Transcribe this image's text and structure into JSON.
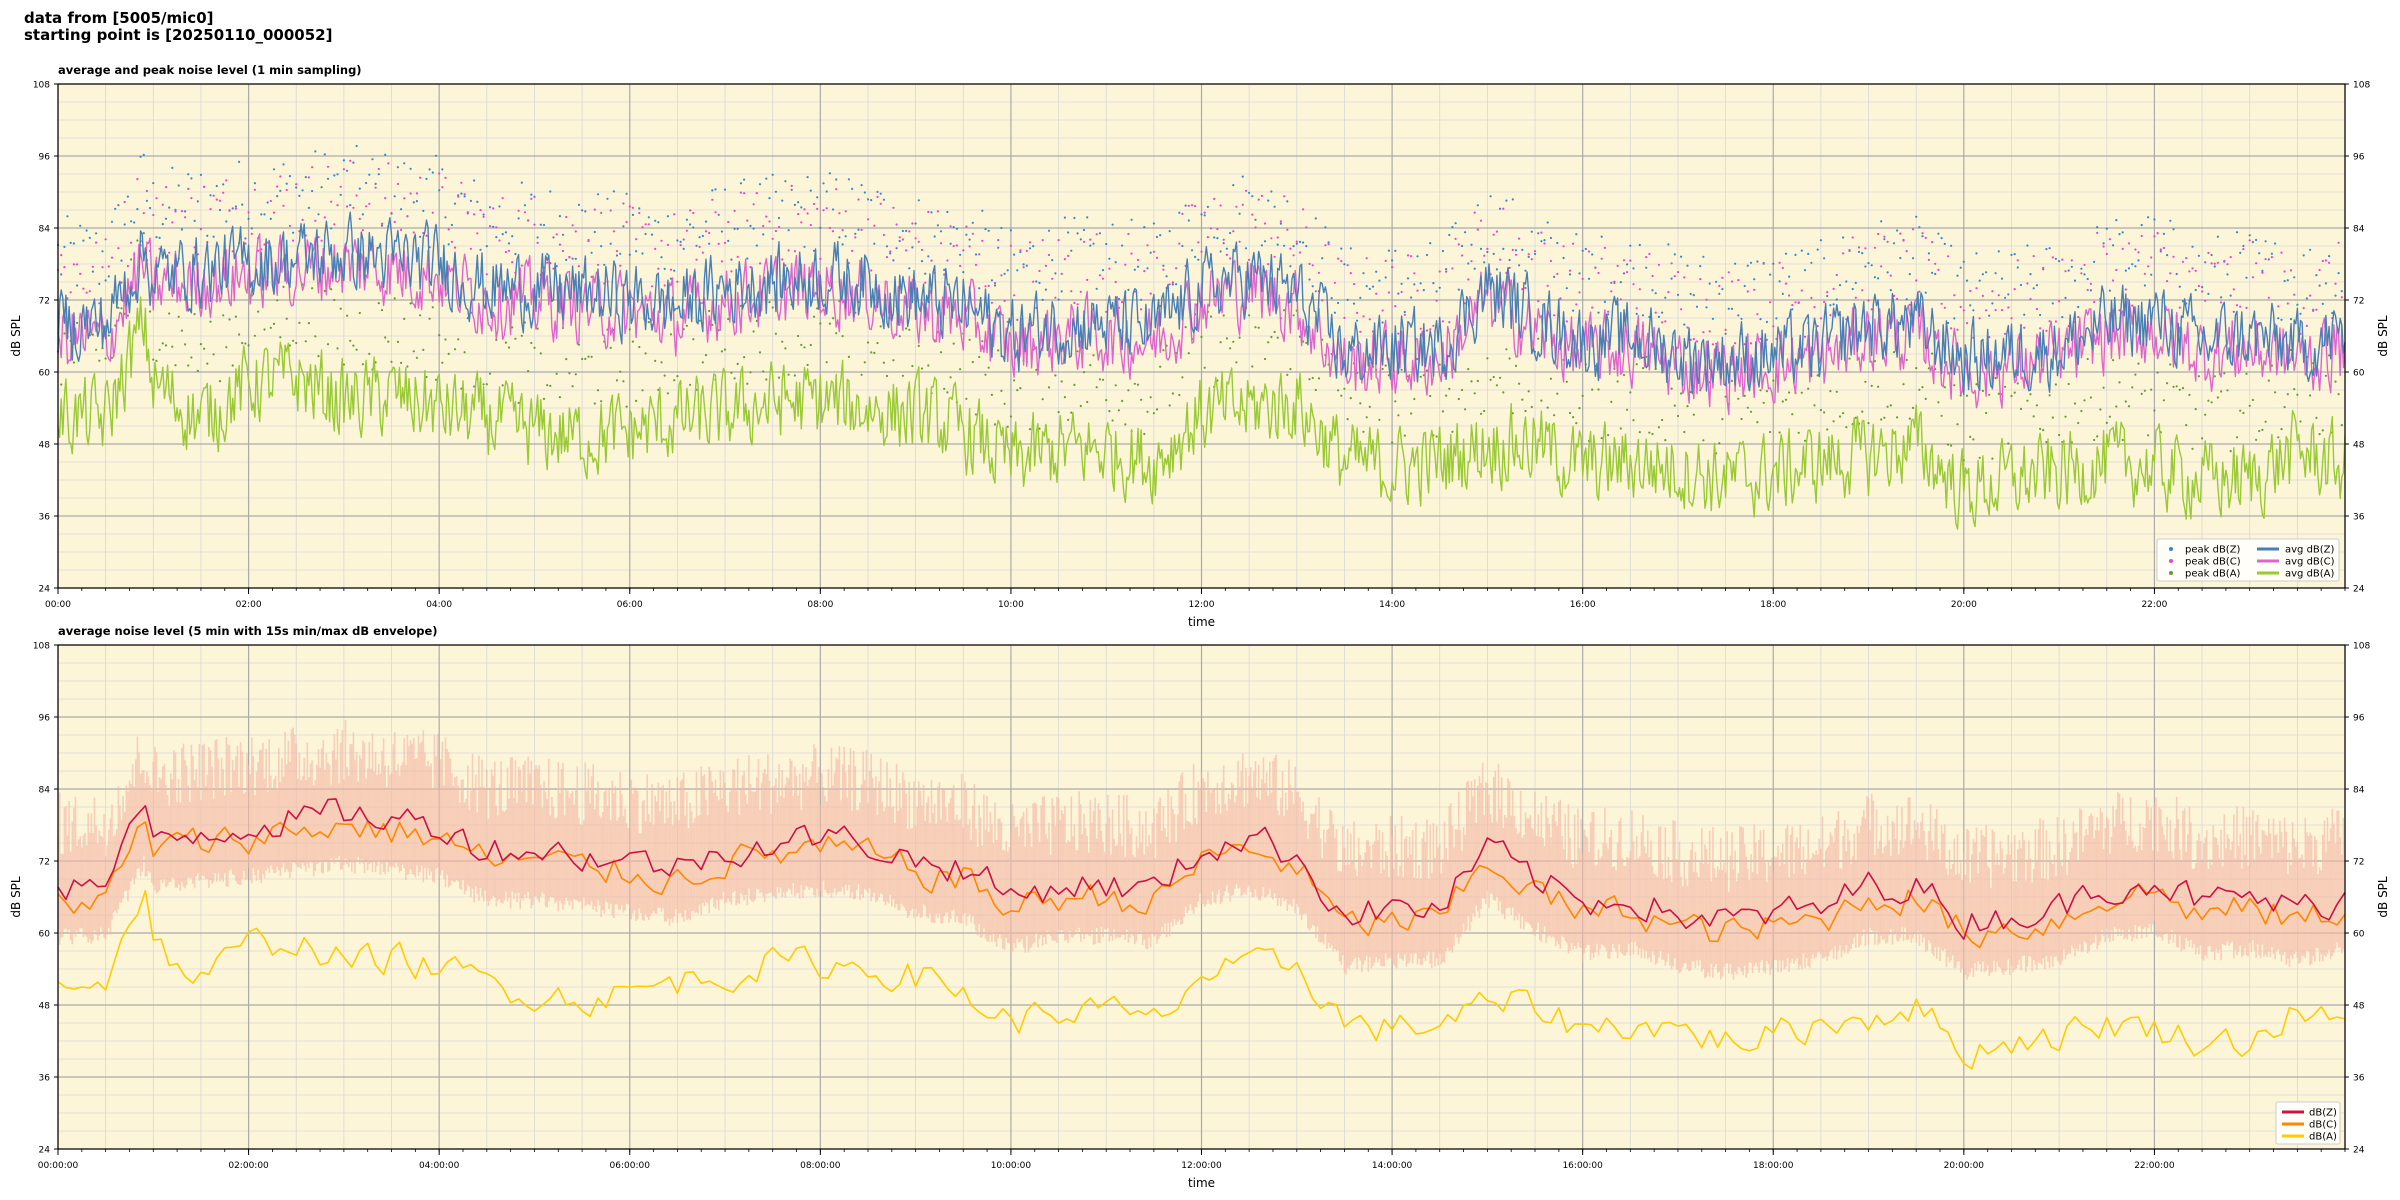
{
  "header": {
    "line1": "data from [5005/mic0]",
    "line2": "starting point is [20250110_000052]"
  },
  "colors": {
    "plot_bg": "#fdf5d8",
    "grid_major": "#aaaaaa",
    "grid_minor": "#d8d8d8",
    "dbz_blue": "#4a7fb5",
    "dbc_magenta": "#dd66cc",
    "dba_green": "#99c933",
    "z_crimson": "#cc1144",
    "c_orange": "#ff8800",
    "a_yellow": "#ffcc00",
    "envelope": "#f5b8a8"
  },
  "chart_data": [
    {
      "type": "line",
      "title": "average and peak noise level (1 min sampling)",
      "xlabel": "time",
      "ylabel": "dB SPL",
      "ylim": [
        24,
        108
      ],
      "yticks": [
        24,
        36,
        48,
        60,
        72,
        84,
        96,
        108
      ],
      "xlim_hours": [
        0,
        24
      ],
      "xtick_labels": [
        "00:00",
        "02:00",
        "04:00",
        "06:00",
        "08:00",
        "10:00",
        "12:00",
        "14:00",
        "16:00",
        "18:00",
        "20:00",
        "22:00"
      ],
      "grid": true,
      "legend_position": "bottom-right",
      "legend": [
        "peak dB(Z)",
        "peak dB(C)",
        "peak dB(A)",
        "avg dB(Z)",
        "avg dB(C)",
        "avg dB(A)"
      ],
      "series": [
        {
          "name": "avg dB(Z)",
          "color": "#4a7fb5",
          "x_hours": [
            0,
            0.5,
            0.9,
            1.0,
            1.5,
            2.0,
            2.5,
            3.0,
            3.5,
            4.0,
            4.5,
            5.0,
            5.5,
            6.0,
            6.5,
            7.0,
            7.5,
            8.0,
            8.5,
            9.0,
            9.5,
            10.0,
            10.5,
            11.0,
            11.5,
            12.0,
            12.5,
            13.0,
            13.5,
            14.0,
            14.5,
            15.0,
            15.5,
            16.0,
            16.5,
            17.0,
            17.5,
            18.0,
            18.5,
            19.0,
            19.5,
            20.0,
            20.5,
            21.0,
            21.5,
            22.0,
            22.5,
            23.0,
            23.5,
            24.0
          ],
          "values": [
            68,
            68,
            80,
            76,
            77,
            78,
            79,
            80,
            79,
            78,
            74,
            74,
            73,
            72,
            71,
            74,
            75,
            76,
            75,
            72,
            71,
            66,
            68,
            68,
            67,
            74,
            76,
            73,
            63,
            64,
            64,
            74,
            69,
            65,
            66,
            63,
            62,
            63,
            64,
            68,
            68,
            62,
            63,
            64,
            68,
            69,
            65,
            66,
            64,
            66
          ]
        },
        {
          "name": "avg dB(C)",
          "color": "#dd66cc",
          "x_hours": [
            0,
            0.5,
            0.9,
            1.0,
            1.5,
            2.0,
            2.5,
            3.0,
            3.5,
            4.0,
            4.5,
            5.0,
            5.5,
            6.0,
            6.5,
            7.0,
            7.5,
            8.0,
            8.5,
            9.0,
            9.5,
            10.0,
            10.5,
            11.0,
            11.5,
            12.0,
            12.5,
            13.0,
            13.5,
            14.0,
            14.5,
            15.0,
            15.5,
            16.0,
            16.5,
            17.0,
            17.5,
            18.0,
            18.5,
            19.0,
            19.5,
            20.0,
            20.5,
            21.0,
            21.5,
            22.0,
            22.5,
            23.0,
            23.5,
            24.0
          ],
          "values": [
            66,
            65,
            78,
            74,
            75,
            76,
            77,
            78,
            77,
            76,
            72,
            72,
            71,
            70,
            69,
            72,
            73,
            74,
            73,
            70,
            69,
            64,
            66,
            66,
            65,
            72,
            74,
            71,
            61,
            62,
            62,
            72,
            67,
            63,
            64,
            61,
            60,
            61,
            62,
            66,
            66,
            60,
            61,
            62,
            66,
            67,
            63,
            64,
            62,
            64
          ]
        },
        {
          "name": "avg dB(A)",
          "color": "#99c933",
          "x_hours": [
            0,
            0.5,
            0.9,
            1.0,
            1.5,
            2.0,
            2.5,
            3.0,
            3.5,
            4.0,
            4.5,
            5.0,
            5.5,
            6.0,
            6.5,
            7.0,
            7.5,
            8.0,
            8.5,
            9.0,
            9.5,
            10.0,
            10.5,
            11.0,
            11.5,
            12.0,
            12.5,
            13.0,
            13.5,
            14.0,
            14.5,
            15.0,
            15.5,
            16.0,
            16.5,
            17.0,
            17.5,
            18.0,
            18.5,
            19.0,
            19.5,
            20.0,
            20.5,
            21.0,
            21.5,
            22.0,
            22.5,
            23.0,
            23.5,
            24.0
          ],
          "values": [
            53,
            52,
            68,
            58,
            52,
            58,
            59,
            55,
            56,
            54,
            52,
            50,
            49,
            50,
            52,
            53,
            55,
            55,
            54,
            53,
            50,
            45,
            47,
            47,
            45,
            53,
            54,
            55,
            45,
            44,
            45,
            48,
            48,
            44,
            45,
            44,
            42,
            43,
            45,
            46,
            48,
            40,
            42,
            43,
            45,
            44,
            42,
            42,
            47,
            44
          ]
        }
      ]
    },
    {
      "type": "line",
      "title": "average noise level (5 min with 15s min/max dB envelope)",
      "xlabel": "time",
      "ylabel": "dB SPL",
      "ylim": [
        24,
        108
      ],
      "yticks": [
        24,
        36,
        48,
        60,
        72,
        84,
        96,
        108
      ],
      "xlim_hours": [
        0,
        24
      ],
      "xtick_labels": [
        "00:00:00",
        "02:00:00",
        "04:00:00",
        "06:00:00",
        "08:00:00",
        "10:00:00",
        "12:00:00",
        "14:00:00",
        "16:00:00",
        "18:00:00",
        "20:00:00",
        "22:00:00"
      ],
      "grid": true,
      "legend_position": "bottom-right",
      "legend": [
        "dB(Z)",
        "dB(C)",
        "dB(A)"
      ],
      "series": [
        {
          "name": "dB(Z)",
          "color": "#cc1144",
          "x_hours": [
            0,
            0.5,
            0.9,
            1.0,
            1.5,
            2.0,
            2.5,
            3.0,
            3.5,
            4.0,
            4.5,
            5.0,
            5.5,
            6.0,
            6.5,
            7.0,
            7.5,
            8.0,
            8.5,
            9.0,
            9.5,
            10.0,
            10.5,
            11.0,
            11.5,
            12.0,
            12.5,
            13.0,
            13.5,
            14.0,
            14.5,
            15.0,
            15.5,
            16.0,
            16.5,
            17.0,
            17.5,
            18.0,
            18.5,
            19.0,
            19.5,
            20.0,
            20.5,
            21.0,
            21.5,
            22.0,
            22.5,
            23.0,
            23.5,
            24.0
          ],
          "values": [
            68,
            68,
            80,
            76,
            77,
            78,
            79,
            80,
            79,
            78,
            74,
            74,
            73,
            72,
            71,
            74,
            75,
            76,
            75,
            72,
            71,
            66,
            68,
            68,
            67,
            74,
            76,
            73,
            63,
            64,
            64,
            74,
            69,
            65,
            66,
            63,
            62,
            63,
            64,
            68,
            68,
            62,
            63,
            64,
            68,
            69,
            65,
            66,
            64,
            66
          ]
        },
        {
          "name": "dB(C)",
          "color": "#ff8800",
          "x_hours": [
            0,
            0.5,
            0.9,
            1.0,
            1.5,
            2.0,
            2.5,
            3.0,
            3.5,
            4.0,
            4.5,
            5.0,
            5.5,
            6.0,
            6.5,
            7.0,
            7.5,
            8.0,
            8.5,
            9.0,
            9.5,
            10.0,
            10.5,
            11.0,
            11.5,
            12.0,
            12.5,
            13.0,
            13.5,
            14.0,
            14.5,
            15.0,
            15.5,
            16.0,
            16.5,
            17.0,
            17.5,
            18.0,
            18.5,
            19.0,
            19.5,
            20.0,
            20.5,
            21.0,
            21.5,
            22.0,
            22.5,
            23.0,
            23.5,
            24.0
          ],
          "values": [
            66,
            65,
            78,
            74,
            75,
            76,
            77,
            78,
            77,
            76,
            72,
            72,
            71,
            70,
            69,
            72,
            73,
            74,
            73,
            70,
            69,
            64,
            66,
            66,
            65,
            72,
            74,
            71,
            61,
            62,
            62,
            72,
            67,
            63,
            64,
            61,
            60,
            61,
            62,
            66,
            66,
            60,
            61,
            62,
            66,
            67,
            63,
            64,
            62,
            64
          ]
        },
        {
          "name": "dB(A)",
          "color": "#ffcc00",
          "x_hours": [
            0,
            0.5,
            0.9,
            1.0,
            1.5,
            2.0,
            2.5,
            3.0,
            3.5,
            4.0,
            4.5,
            5.0,
            5.5,
            6.0,
            6.5,
            7.0,
            7.5,
            8.0,
            8.5,
            9.0,
            9.5,
            10.0,
            10.5,
            11.0,
            11.5,
            12.0,
            12.5,
            13.0,
            13.5,
            14.0,
            14.5,
            15.0,
            15.5,
            16.0,
            16.5,
            17.0,
            17.5,
            18.0,
            18.5,
            19.0,
            19.5,
            20.0,
            20.5,
            21.0,
            21.5,
            22.0,
            22.5,
            23.0,
            23.5,
            24.0
          ],
          "values": [
            53,
            52,
            68,
            58,
            52,
            58,
            59,
            55,
            56,
            54,
            52,
            50,
            49,
            50,
            52,
            53,
            55,
            55,
            54,
            53,
            50,
            45,
            47,
            47,
            45,
            53,
            54,
            55,
            45,
            44,
            45,
            48,
            48,
            44,
            45,
            44,
            42,
            43,
            45,
            46,
            48,
            40,
            42,
            43,
            45,
            44,
            42,
            42,
            47,
            44
          ]
        }
      ],
      "envelope": {
        "color": "#f5b8a8",
        "min_offset_db": -7,
        "max_offset_db": 12
      }
    }
  ]
}
